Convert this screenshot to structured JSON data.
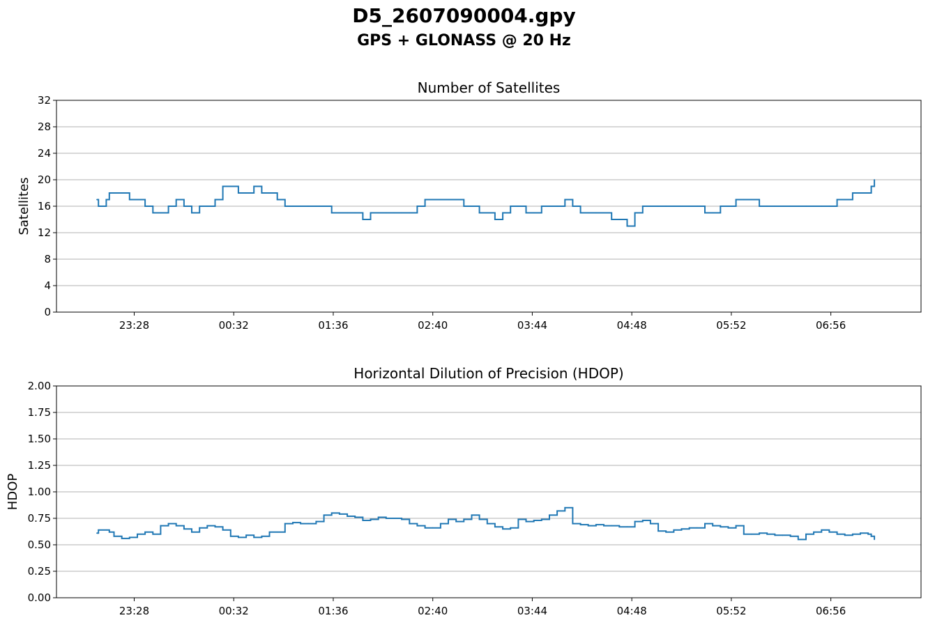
{
  "figure": {
    "title": "D5_2607090004.gpy",
    "subtitle": "GPS + GLONASS @ 20 Hz"
  },
  "colors": {
    "series": "#1f77b4",
    "grid": "#b0b0b0",
    "axis": "#000000"
  },
  "chart_data": [
    {
      "type": "line",
      "title": "Number of Satellites",
      "xlabel": "",
      "ylabel": "Satellites",
      "ylim": [
        0,
        32
      ],
      "yticks": [
        0,
        4,
        8,
        12,
        16,
        20,
        24,
        28,
        32
      ],
      "ytick_labels": [
        "0",
        "4",
        "8",
        "12",
        "16",
        "20",
        "24",
        "28",
        "32"
      ],
      "xlim": [
        "22:38",
        "07:54"
      ],
      "xticks": [
        "23:28",
        "00:32",
        "01:36",
        "02:40",
        "03:44",
        "04:48",
        "05:52",
        "06:56"
      ],
      "grid": "y",
      "series": [
        {
          "x": [
            "23:04",
            "23:05",
            "23:06",
            "23:10",
            "23:12",
            "23:15",
            "23:20",
            "23:25",
            "23:30",
            "23:35",
            "23:40",
            "23:45",
            "23:50",
            "23:55",
            "00:00",
            "00:05",
            "00:10",
            "00:15",
            "00:20",
            "00:25",
            "00:30",
            "00:35",
            "00:40",
            "00:45",
            "00:50",
            "00:55",
            "01:00",
            "01:05",
            "01:10",
            "01:15",
            "01:20",
            "01:25",
            "01:30",
            "01:35",
            "01:40",
            "01:45",
            "01:50",
            "01:55",
            "02:00",
            "02:05",
            "02:10",
            "02:15",
            "02:20",
            "02:25",
            "02:30",
            "02:35",
            "02:40",
            "02:45",
            "02:50",
            "02:55",
            "03:00",
            "03:05",
            "03:10",
            "03:15",
            "03:20",
            "03:25",
            "03:30",
            "03:35",
            "03:40",
            "03:45",
            "03:50",
            "03:55",
            "04:00",
            "04:05",
            "04:10",
            "04:15",
            "04:20",
            "04:25",
            "04:30",
            "04:35",
            "04:40",
            "04:45",
            "04:50",
            "04:55",
            "05:00",
            "05:05",
            "05:10",
            "05:15",
            "05:20",
            "05:25",
            "05:30",
            "05:35",
            "05:40",
            "05:45",
            "05:50",
            "05:55",
            "06:00",
            "06:05",
            "06:10",
            "06:15",
            "06:20",
            "06:25",
            "06:30",
            "06:35",
            "06:40",
            "06:45",
            "06:50",
            "06:55",
            "07:00",
            "07:05",
            "07:10",
            "07:15",
            "07:20",
            "07:22",
            "07:24"
          ],
          "y": [
            17,
            16,
            16,
            17,
            18,
            18,
            18,
            17,
            17,
            16,
            15,
            15,
            16,
            17,
            16,
            15,
            16,
            16,
            17,
            19,
            19,
            18,
            18,
            19,
            18,
            18,
            17,
            16,
            16,
            16,
            16,
            16,
            16,
            15,
            15,
            15,
            15,
            14,
            15,
            15,
            15,
            15,
            15,
            15,
            16,
            17,
            17,
            17,
            17,
            17,
            16,
            16,
            15,
            15,
            14,
            15,
            16,
            16,
            15,
            15,
            16,
            16,
            16,
            17,
            16,
            15,
            15,
            15,
            15,
            14,
            14,
            13,
            15,
            16,
            16,
            16,
            16,
            16,
            16,
            16,
            16,
            15,
            15,
            16,
            16,
            17,
            17,
            17,
            16,
            16,
            16,
            16,
            16,
            16,
            16,
            16,
            16,
            16,
            17,
            17,
            18,
            18,
            18,
            19,
            20
          ]
        }
      ]
    },
    {
      "type": "line",
      "title": "Horizontal Dilution of Precision (HDOP)",
      "xlabel": "",
      "ylabel": "HDOP",
      "ylim": [
        0,
        2
      ],
      "yticks": [
        0,
        0.25,
        0.5,
        0.75,
        1.0,
        1.25,
        1.5,
        1.75,
        2.0
      ],
      "ytick_labels": [
        "0.00",
        "0.25",
        "0.50",
        "0.75",
        "1.00",
        "1.25",
        "1.50",
        "1.75",
        "2.00"
      ],
      "xlim": [
        "22:38",
        "07:54"
      ],
      "xticks": [
        "23:28",
        "00:32",
        "01:36",
        "02:40",
        "03:44",
        "04:48",
        "05:52",
        "06:56"
      ],
      "grid": "y",
      "series": [
        {
          "x": [
            "23:04",
            "23:05",
            "23:06",
            "23:10",
            "23:12",
            "23:15",
            "23:20",
            "23:25",
            "23:30",
            "23:35",
            "23:40",
            "23:45",
            "23:50",
            "23:55",
            "00:00",
            "00:05",
            "00:10",
            "00:15",
            "00:20",
            "00:25",
            "00:30",
            "00:35",
            "00:40",
            "00:45",
            "00:50",
            "00:55",
            "01:00",
            "01:05",
            "01:10",
            "01:15",
            "01:20",
            "01:25",
            "01:30",
            "01:35",
            "01:40",
            "01:45",
            "01:50",
            "01:55",
            "02:00",
            "02:05",
            "02:10",
            "02:15",
            "02:20",
            "02:25",
            "02:30",
            "02:35",
            "02:40",
            "02:45",
            "02:50",
            "02:55",
            "03:00",
            "03:05",
            "03:10",
            "03:15",
            "03:20",
            "03:25",
            "03:30",
            "03:35",
            "03:40",
            "03:45",
            "03:50",
            "03:55",
            "04:00",
            "04:05",
            "04:10",
            "04:15",
            "04:20",
            "04:25",
            "04:30",
            "04:35",
            "04:40",
            "04:45",
            "04:50",
            "04:55",
            "05:00",
            "05:05",
            "05:10",
            "05:15",
            "05:20",
            "05:25",
            "05:30",
            "05:35",
            "05:40",
            "05:45",
            "05:50",
            "05:55",
            "06:00",
            "06:05",
            "06:10",
            "06:15",
            "06:20",
            "06:25",
            "06:30",
            "06:35",
            "06:40",
            "06:45",
            "06:50",
            "06:55",
            "07:00",
            "07:05",
            "07:10",
            "07:15",
            "07:20",
            "07:22",
            "07:24"
          ],
          "y": [
            0.61,
            0.64,
            0.64,
            0.64,
            0.62,
            0.58,
            0.56,
            0.57,
            0.6,
            0.62,
            0.6,
            0.68,
            0.7,
            0.68,
            0.65,
            0.62,
            0.66,
            0.68,
            0.67,
            0.64,
            0.58,
            0.57,
            0.59,
            0.57,
            0.58,
            0.62,
            0.62,
            0.7,
            0.71,
            0.7,
            0.7,
            0.72,
            0.78,
            0.8,
            0.79,
            0.77,
            0.76,
            0.73,
            0.74,
            0.76,
            0.75,
            0.75,
            0.74,
            0.7,
            0.68,
            0.66,
            0.66,
            0.7,
            0.74,
            0.72,
            0.74,
            0.78,
            0.74,
            0.7,
            0.67,
            0.65,
            0.66,
            0.74,
            0.72,
            0.73,
            0.74,
            0.78,
            0.82,
            0.85,
            0.7,
            0.69,
            0.68,
            0.69,
            0.68,
            0.68,
            0.67,
            0.67,
            0.72,
            0.73,
            0.7,
            0.63,
            0.62,
            0.64,
            0.65,
            0.66,
            0.66,
            0.7,
            0.68,
            0.67,
            0.66,
            0.68,
            0.6,
            0.6,
            0.61,
            0.6,
            0.59,
            0.59,
            0.58,
            0.55,
            0.6,
            0.62,
            0.64,
            0.62,
            0.6,
            0.59,
            0.6,
            0.61,
            0.6,
            0.58,
            0.55
          ]
        }
      ]
    }
  ]
}
